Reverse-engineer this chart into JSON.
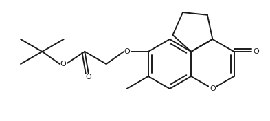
{
  "bg_color": "#ffffff",
  "line_color": "#1a1a1a",
  "line_width": 1.4,
  "figsize": [
    3.93,
    1.76
  ],
  "dpi": 100,
  "xlim": [
    0,
    393
  ],
  "ylim": [
    0,
    176
  ]
}
